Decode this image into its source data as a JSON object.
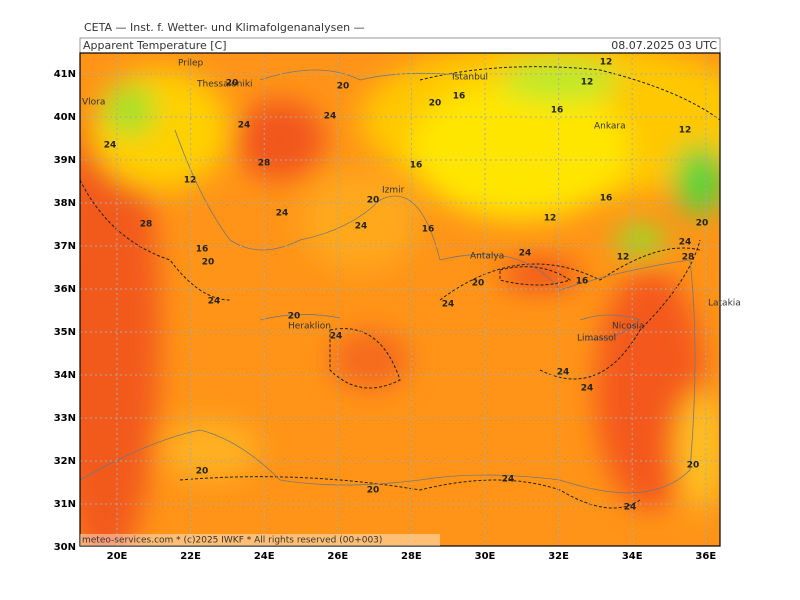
{
  "header": {
    "source": "CETA — Inst. f. Wetter- und Klimafolgenanalysen —",
    "title": "Apparent Temperature [C]",
    "time": "08.07.2025 03 UTC"
  },
  "footer": "meteo-services.com * (c)2025 IWKF * All rights reserved (00+003)",
  "lat_labels": [
    "41N",
    "40N",
    "39N",
    "38N",
    "37N",
    "36N",
    "35N",
    "34N",
    "33N",
    "32N",
    "31N",
    "30N"
  ],
  "lon_labels": [
    "20E",
    "22E",
    "24E",
    "26E",
    "28E",
    "30E",
    "32E",
    "34E",
    "36E"
  ],
  "cities": [
    "Prilep",
    "Thessaloniki",
    "Vlora",
    "Istanbul",
    "Ankara",
    "Izmir",
    "Antalya",
    "Heraklion",
    "Nicosia",
    "Limassol",
    "Latakia"
  ],
  "contour_labels": [
    20,
    20,
    20,
    16,
    12,
    12,
    16,
    12,
    24,
    24,
    24,
    28,
    12,
    16,
    20,
    24,
    24,
    16,
    12,
    16,
    28,
    16,
    20,
    12,
    24,
    20,
    28,
    24,
    20,
    16,
    24,
    24,
    20,
    24,
    24,
    24,
    20,
    20,
    20,
    24,
    24
  ]
}
